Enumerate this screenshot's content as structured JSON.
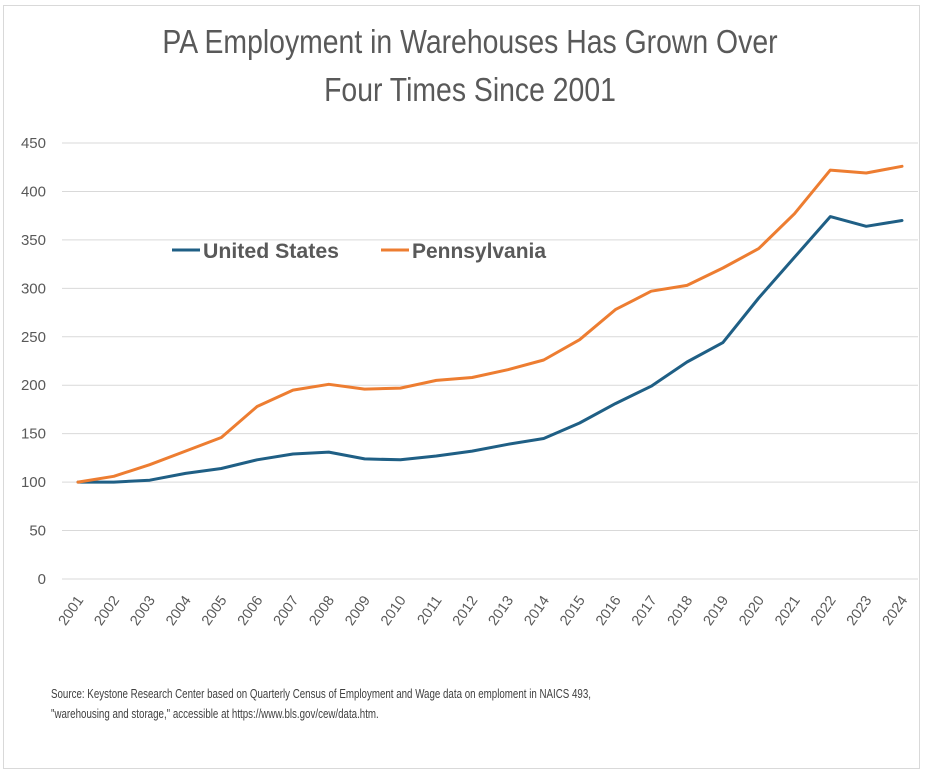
{
  "chart_data": {
    "type": "line",
    "title": "PA Employment in Warehouses Has Grown Over Four Times Since 2001",
    "title_lines": [
      "PA Employment in Warehouses Has Grown Over",
      "Four Times Since 2001"
    ],
    "xlabel": "",
    "ylabel": "",
    "x": [
      "2001",
      "2002",
      "2003",
      "2004",
      "2005",
      "2006",
      "2007",
      "2008",
      "2009",
      "2010",
      "2011",
      "2012",
      "2013",
      "2014",
      "2015",
      "2016",
      "2017",
      "2018",
      "2019",
      "2020",
      "2021",
      "2022",
      "2023",
      "2024"
    ],
    "ylim": [
      0,
      450
    ],
    "yticks": [
      0,
      50,
      100,
      150,
      200,
      250,
      300,
      350,
      400,
      450
    ],
    "grid": true,
    "legend_position": "upper-left inside plot",
    "series": [
      {
        "name": "United States",
        "color": "#1f5f85",
        "values": [
          100,
          100,
          102,
          109,
          114,
          123,
          129,
          131,
          124,
          123,
          127,
          132,
          139,
          145,
          161,
          181,
          199,
          224,
          244,
          290,
          332,
          374,
          364,
          370
        ]
      },
      {
        "name": "Pennsylvania",
        "color": "#ed7d31",
        "values": [
          100,
          106,
          118,
          132,
          146,
          178,
          195,
          201,
          196,
          197,
          205,
          208,
          216,
          226,
          247,
          278,
          297,
          303,
          321,
          341,
          377,
          422,
          419,
          426
        ]
      }
    ],
    "source_lines": [
      "Source: Keystone Research Center based on Quarterly Census of Employment and Wage data  on emploment in NAICS 493,",
      "\"warehousing and storage,\" accessible at https://www.bls.gov/cew/data.htm."
    ]
  }
}
